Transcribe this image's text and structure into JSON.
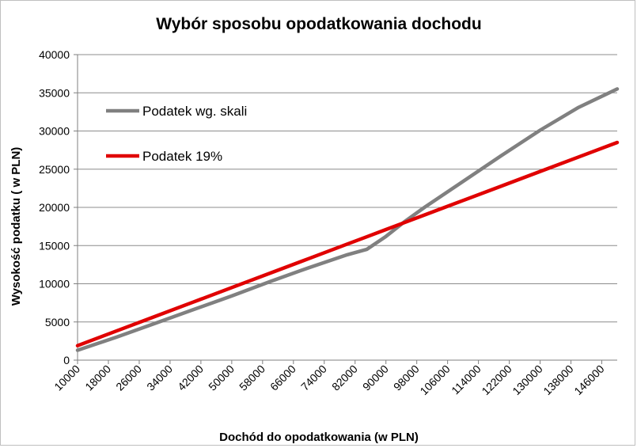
{
  "chart_data": {
    "type": "line",
    "title": "Wybór sposobu opodatkowania dochodu",
    "xlabel": "Dochód do opodatkowania (w PLN)",
    "ylabel": "Wysokość podatku ( w PLN)",
    "ylim": [
      0,
      40000
    ],
    "y_ticks": [
      "0",
      "5000",
      "10000",
      "15000",
      "20000",
      "25000",
      "30000",
      "35000",
      "40000"
    ],
    "x_range": [
      10000,
      150000
    ],
    "x_ticks": [
      "10000",
      "18000",
      "26000",
      "34000",
      "42000",
      "50000",
      "58000",
      "66000",
      "74000",
      "82000",
      "90000",
      "98000",
      "106000",
      "114000",
      "122000",
      "130000",
      "138000",
      "146000"
    ],
    "grid": "horizontal",
    "legend": "top-left, inside plot",
    "x": [
      10000,
      20000,
      30000,
      40000,
      50000,
      60000,
      70000,
      80000,
      85000,
      90000,
      95000,
      100000,
      110000,
      120000,
      130000,
      140000,
      150000
    ],
    "series": [
      {
        "name": "Podatek wg. skali",
        "color": "#808080",
        "values": [
          1300,
          3000,
          4800,
          6600,
          8400,
          10300,
          12100,
          13800,
          14500,
          16200,
          18200,
          20000,
          23400,
          26800,
          30100,
          33100,
          35500
        ]
      },
      {
        "name": "Podatek 19%",
        "color": "#e00000",
        "values": [
          1900,
          3800,
          5700,
          7600,
          9500,
          11400,
          13300,
          15200,
          16150,
          17100,
          18050,
          19000,
          20900,
          22800,
          24700,
          26600,
          28500
        ]
      }
    ]
  }
}
